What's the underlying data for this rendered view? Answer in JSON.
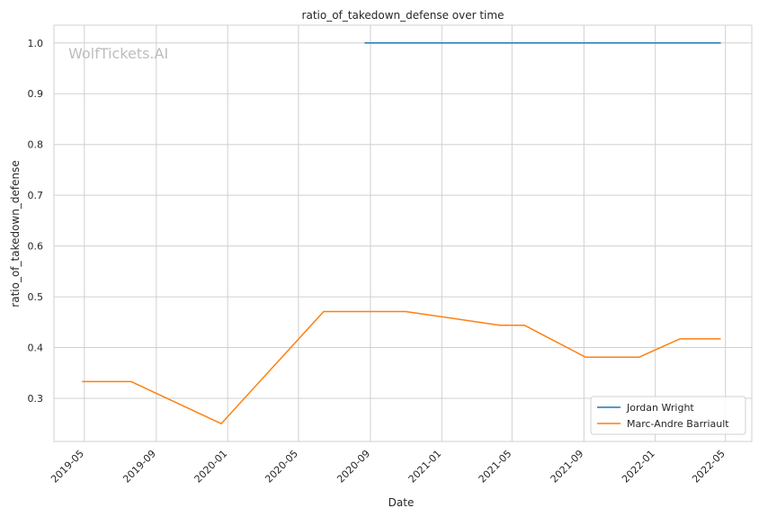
{
  "chart_data": {
    "type": "line",
    "title": "ratio_of_takedown_defense over time",
    "xlabel": "Date",
    "ylabel": "ratio_of_takedown_defense",
    "watermark": "WolfTickets.AI",
    "x_ticks": [
      "2019-05",
      "2019-09",
      "2020-01",
      "2020-05",
      "2020-09",
      "2021-01",
      "2021-05",
      "2021-09",
      "2022-01",
      "2022-05"
    ],
    "y_ticks": [
      0.3,
      0.4,
      0.5,
      0.6,
      0.7,
      0.8,
      0.9,
      1.0
    ],
    "xlim": [
      "2019-03-10",
      "2022-06-15"
    ],
    "ylim": [
      0.215,
      1.035
    ],
    "grid": true,
    "legend_position": "lower-right",
    "series": [
      {
        "name": "Jordan Wright",
        "color": "#1f77b4",
        "points": [
          {
            "x": "2020-08-22",
            "y": 1.0
          },
          {
            "x": "2022-04-23",
            "y": 1.0
          }
        ]
      },
      {
        "name": "Marc-Andre Barriault",
        "color": "#ff7f0e",
        "points": [
          {
            "x": "2019-04-27",
            "y": 0.333
          },
          {
            "x": "2019-07-20",
            "y": 0.333
          },
          {
            "x": "2019-12-21",
            "y": 0.25
          },
          {
            "x": "2020-06-13",
            "y": 0.471
          },
          {
            "x": "2020-10-31",
            "y": 0.471
          },
          {
            "x": "2021-04-10",
            "y": 0.444
          },
          {
            "x": "2021-05-22",
            "y": 0.444
          },
          {
            "x": "2021-09-04",
            "y": 0.381
          },
          {
            "x": "2021-12-04",
            "y": 0.381
          },
          {
            "x": "2022-02-12",
            "y": 0.417
          },
          {
            "x": "2022-04-23",
            "y": 0.417
          }
        ]
      }
    ]
  }
}
